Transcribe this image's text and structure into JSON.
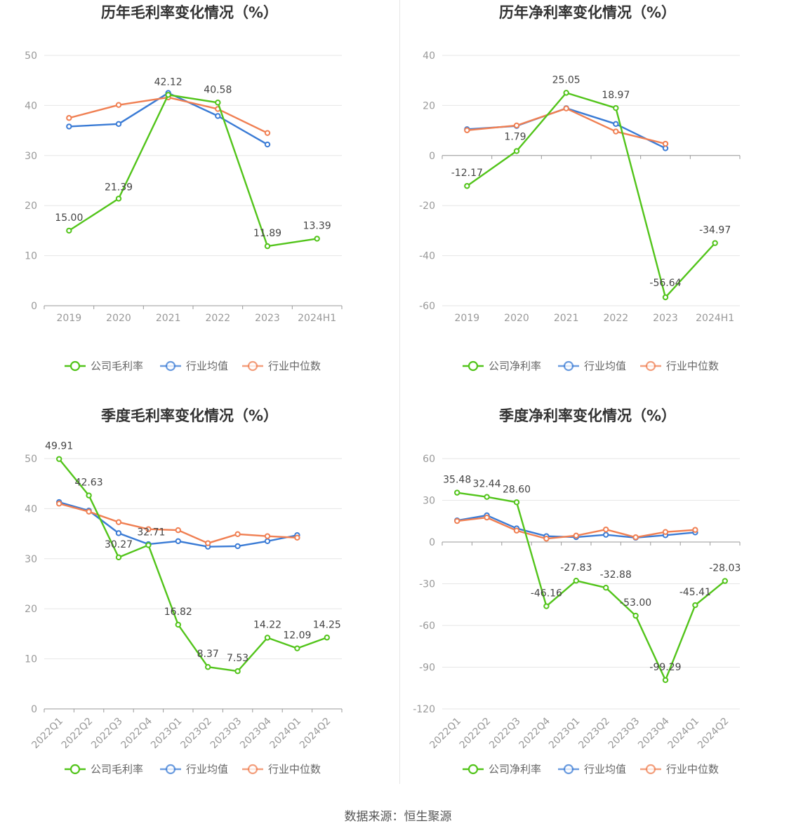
{
  "source": "数据来源：恒生聚源",
  "colors": {
    "company": "#52c41a",
    "avg": "#3a7bd5",
    "median": "#f07f52",
    "grid": "#e6e6e6",
    "axis": "#999999"
  },
  "chart_data": [
    {
      "type": "line",
      "title": "历年毛利率变化情况（%）",
      "categories": [
        "2019",
        "2020",
        "2021",
        "2022",
        "2023",
        "2024H1"
      ],
      "ylim": [
        0,
        50
      ],
      "yticks": [
        0,
        10,
        20,
        30,
        40,
        50
      ],
      "x_label_rotated": false,
      "series": [
        {
          "name": "公司毛利率",
          "key": "company",
          "labeled": true,
          "values": [
            15.0,
            21.39,
            42.12,
            40.58,
            11.89,
            13.39
          ],
          "labels": [
            "15.00",
            "21.39",
            "42.12",
            "40.58",
            "11.89",
            "13.39"
          ]
        },
        {
          "name": "行业均值",
          "key": "avg",
          "values": [
            35.8,
            36.3,
            42.5,
            37.9,
            32.2,
            null
          ]
        },
        {
          "name": "行业中位数",
          "key": "median",
          "values": [
            37.5,
            40.1,
            41.6,
            39.3,
            34.5,
            null
          ]
        }
      ]
    },
    {
      "type": "line",
      "title": "历年净利率变化情况（%）",
      "categories": [
        "2019",
        "2020",
        "2021",
        "2022",
        "2023",
        "2024H1"
      ],
      "ylim": [
        -60,
        40
      ],
      "yticks": [
        -60,
        -40,
        -20,
        0,
        20,
        40
      ],
      "x_label_rotated": false,
      "series": [
        {
          "name": "公司净利率",
          "key": "company",
          "labeled": true,
          "values": [
            -12.17,
            1.79,
            25.05,
            18.97,
            -56.64,
            -34.97
          ],
          "labels": [
            "-12.17",
            "1.79",
            "25.05",
            "18.97",
            "-56.64",
            "-34.97"
          ]
        },
        {
          "name": "行业均值",
          "key": "avg",
          "values": [
            10.5,
            11.8,
            18.9,
            12.6,
            2.9,
            null
          ]
        },
        {
          "name": "行业中位数",
          "key": "median",
          "values": [
            10.1,
            12.0,
            18.8,
            9.6,
            4.7,
            null
          ]
        }
      ]
    },
    {
      "type": "line",
      "title": "季度毛利率变化情况（%）",
      "categories": [
        "2022Q1",
        "2022Q2",
        "2022Q3",
        "2022Q4",
        "2023Q1",
        "2023Q2",
        "2023Q3",
        "2023Q4",
        "2024Q1",
        "2024Q2"
      ],
      "ylim": [
        0,
        50
      ],
      "yticks": [
        0,
        10,
        20,
        30,
        40,
        50
      ],
      "x_label_rotated": true,
      "series": [
        {
          "name": "公司毛利率",
          "key": "company",
          "labeled": true,
          "values": [
            49.91,
            42.63,
            30.27,
            32.71,
            16.82,
            8.37,
            7.53,
            14.22,
            12.09,
            14.25
          ],
          "labels": [
            "49.91",
            "42.63",
            "30.27",
            "32.71",
            "16.82",
            "8.37",
            "7.53",
            "14.22",
            "12.09",
            "14.25"
          ]
        },
        {
          "name": "行业均值",
          "key": "avg",
          "values": [
            41.3,
            39.6,
            35.1,
            32.9,
            33.5,
            32.4,
            32.5,
            33.5,
            34.7,
            null
          ]
        },
        {
          "name": "行业中位数",
          "key": "median",
          "values": [
            41.0,
            39.4,
            37.3,
            35.9,
            35.7,
            33.1,
            34.9,
            34.5,
            34.2,
            null
          ]
        }
      ]
    },
    {
      "type": "line",
      "title": "季度净利率变化情况（%）",
      "categories": [
        "2022Q1",
        "2022Q2",
        "2022Q3",
        "2022Q4",
        "2023Q1",
        "2023Q2",
        "2023Q3",
        "2023Q4",
        "2024Q1",
        "2024Q2"
      ],
      "ylim": [
        -120,
        60
      ],
      "yticks": [
        -120,
        -90,
        -60,
        -30,
        0,
        30,
        60
      ],
      "x_label_rotated": true,
      "series": [
        {
          "name": "公司净利率",
          "key": "company",
          "labeled": true,
          "values": [
            35.48,
            32.44,
            28.6,
            -46.16,
            -27.83,
            -32.88,
            -53.0,
            -99.29,
            -45.41,
            -28.03
          ],
          "labels": [
            "35.48",
            "32.44",
            "28.60",
            "-46.16",
            "-27.83",
            "-32.88",
            "-53.00",
            "-99.29",
            "-45.41",
            "-28.03"
          ]
        },
        {
          "name": "行业均值",
          "key": "avg",
          "values": [
            15.5,
            19.2,
            9.8,
            4.2,
            3.5,
            5.2,
            3.1,
            4.9,
            6.9,
            null
          ]
        },
        {
          "name": "行业中位数",
          "key": "median",
          "values": [
            15.1,
            17.6,
            8.2,
            2.4,
            4.6,
            9.0,
            3.4,
            7.2,
            8.7,
            null
          ]
        }
      ]
    }
  ]
}
